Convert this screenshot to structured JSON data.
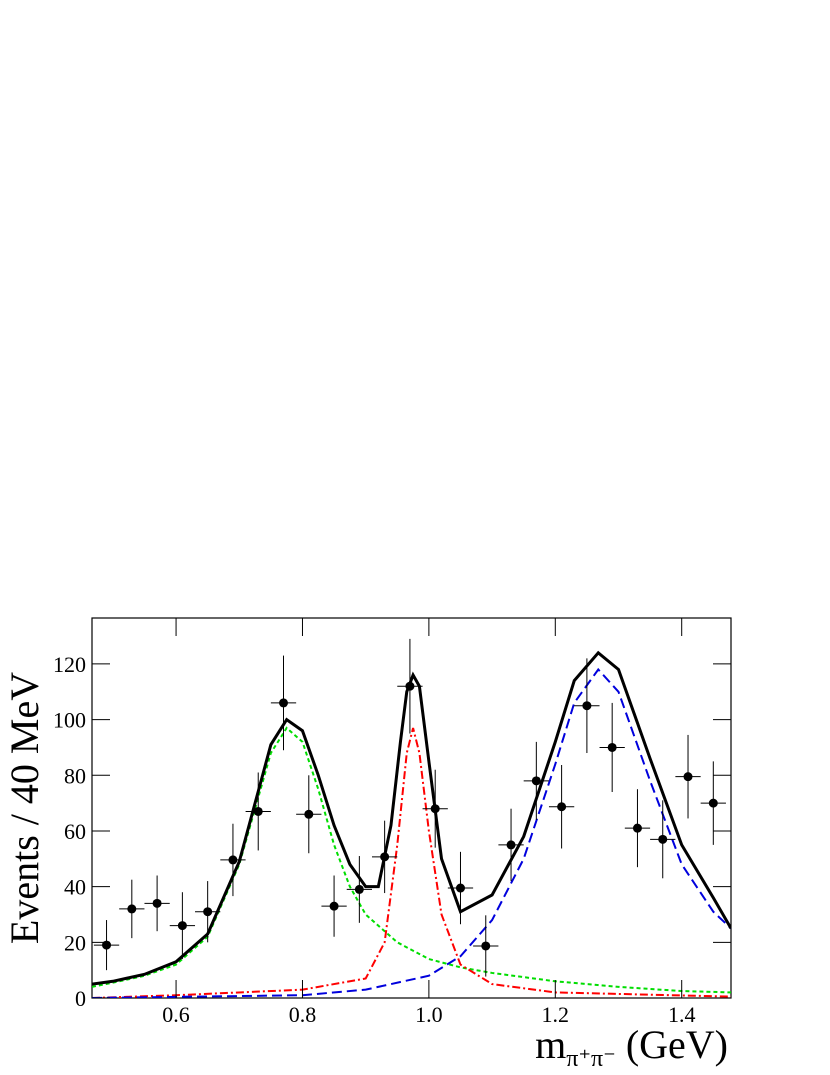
{
  "chart_data": {
    "type": "scatter",
    "y_label": "Events / 40 MeV",
    "x_label": {
      "main": "m",
      "sub": "π⁺π⁻",
      "unit": "(GeV)"
    },
    "xlim": [
      0.467,
      1.478
    ],
    "ylim": [
      0,
      136.5
    ],
    "xticks": [
      0.6,
      0.8,
      {
        "value": 1,
        "label": "1.0"
      },
      1.2,
      1.4
    ],
    "yticks": [
      0,
      20,
      40,
      60,
      80,
      100,
      120
    ],
    "points": {
      "color": "#000000",
      "xerr": 0.02,
      "x": [
        0.49,
        0.53,
        0.57,
        0.61,
        0.65,
        0.69,
        0.73,
        0.77,
        0.81,
        0.85,
        0.89,
        0.93,
        0.97,
        1.01,
        1.05,
        1.09,
        1.13,
        1.17,
        1.21,
        1.25,
        1.29,
        1.33,
        1.37,
        1.41,
        1.45
      ],
      "values": [
        19,
        32,
        34,
        26,
        31,
        49.6,
        67,
        106,
        66,
        33,
        39,
        50.7,
        112,
        68,
        39.5,
        18.7,
        55,
        78,
        68.7,
        105,
        90,
        61,
        57,
        79.5,
        70
      ],
      "errors": [
        9,
        10.5,
        10,
        12,
        11,
        13,
        14,
        17,
        14,
        11,
        12,
        13,
        17,
        14,
        13,
        11,
        13,
        14,
        15,
        17,
        16,
        14,
        14,
        15,
        15
      ]
    },
    "series": [
      {
        "color": "#00dd00",
        "style": "dotted",
        "x": [
          0.467,
          0.5,
          0.55,
          0.6,
          0.65,
          0.7,
          0.725,
          0.75,
          0.775,
          0.8,
          0.825,
          0.85,
          0.875,
          0.9,
          0.95,
          1.0,
          1.05,
          1.1,
          1.2,
          1.3,
          1.4,
          1.478
        ],
        "values": [
          4,
          5.5,
          8,
          12,
          22,
          48,
          68,
          88,
          97,
          92,
          75,
          55,
          40,
          30,
          20,
          14,
          11,
          9,
          6,
          4,
          2.5,
          2
        ]
      },
      {
        "color": "#ff0000",
        "style": "dashdot",
        "x": [
          0.467,
          0.6,
          0.8,
          0.9,
          0.93,
          0.95,
          0.965,
          0.975,
          0.985,
          1.0,
          1.02,
          1.05,
          1.1,
          1.2,
          1.478
        ],
        "values": [
          0,
          1,
          3,
          7,
          20,
          55,
          88,
          97,
          88,
          60,
          30,
          12,
          5,
          2,
          0.5
        ]
      },
      {
        "color": "#0000dd",
        "style": "dashed",
        "x": [
          0.467,
          0.8,
          0.9,
          1.0,
          1.05,
          1.1,
          1.15,
          1.2,
          1.23,
          1.268,
          1.3,
          1.35,
          1.4,
          1.45,
          1.478
        ],
        "values": [
          0,
          1,
          3,
          8,
          15,
          28,
          50,
          84,
          106,
          118,
          110,
          78,
          48,
          31,
          25
        ]
      },
      {
        "color": "#000000",
        "style": "solid",
        "x": [
          0.467,
          0.5,
          0.55,
          0.6,
          0.65,
          0.7,
          0.725,
          0.75,
          0.775,
          0.8,
          0.825,
          0.85,
          0.875,
          0.9,
          0.92,
          0.94,
          0.955,
          0.965,
          0.975,
          0.985,
          1.0,
          1.02,
          1.05,
          1.1,
          1.15,
          1.2,
          1.23,
          1.268,
          1.3,
          1.35,
          1.4,
          1.45,
          1.478
        ],
        "values": [
          5,
          6,
          8.5,
          13,
          23,
          49,
          70,
          91,
          100,
          96,
          80,
          62,
          48,
          40,
          40,
          62,
          92,
          110,
          116,
          112,
          85,
          50,
          31,
          37,
          58,
          92,
          114,
          124,
          118,
          86,
          55,
          36,
          25
        ]
      }
    ]
  }
}
